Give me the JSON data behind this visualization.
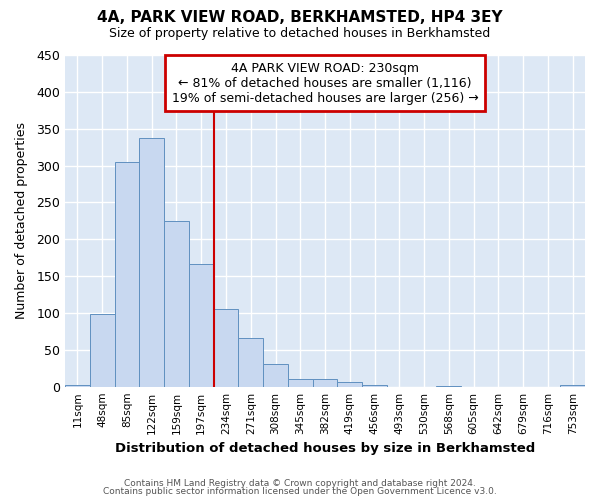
{
  "title1": "4A, PARK VIEW ROAD, BERKHAMSTED, HP4 3EY",
  "title2": "Size of property relative to detached houses in Berkhamsted",
  "xlabel": "Distribution of detached houses by size in Berkhamsted",
  "ylabel": "Number of detached properties",
  "bin_labels": [
    "11sqm",
    "48sqm",
    "85sqm",
    "122sqm",
    "159sqm",
    "197sqm",
    "234sqm",
    "271sqm",
    "308sqm",
    "345sqm",
    "382sqm",
    "419sqm",
    "456sqm",
    "493sqm",
    "530sqm",
    "568sqm",
    "605sqm",
    "642sqm",
    "679sqm",
    "716sqm",
    "753sqm"
  ],
  "bar_values": [
    2,
    99,
    305,
    337,
    225,
    167,
    106,
    66,
    31,
    11,
    10,
    6,
    2,
    0,
    0,
    1,
    0,
    0,
    0,
    0,
    2
  ],
  "bar_color": "#c8d8f0",
  "bar_edge_color": "#6090c0",
  "vline_bin_index": 6,
  "annotation_line1": "4A PARK VIEW ROAD: 230sqm",
  "annotation_line2": "← 81% of detached houses are smaller (1,116)",
  "annotation_line3": "19% of semi-detached houses are larger (256) →",
  "annotation_box_color": "#ffffff",
  "annotation_box_edge": "#cc0000",
  "vline_color": "#cc0000",
  "ylim": [
    0,
    450
  ],
  "yticks": [
    0,
    50,
    100,
    150,
    200,
    250,
    300,
    350,
    400,
    450
  ],
  "footer1": "Contains HM Land Registry data © Crown copyright and database right 2024.",
  "footer2": "Contains public sector information licensed under the Open Government Licence v3.0.",
  "bg_color": "#ffffff",
  "plot_bg_color": "#dde8f5"
}
